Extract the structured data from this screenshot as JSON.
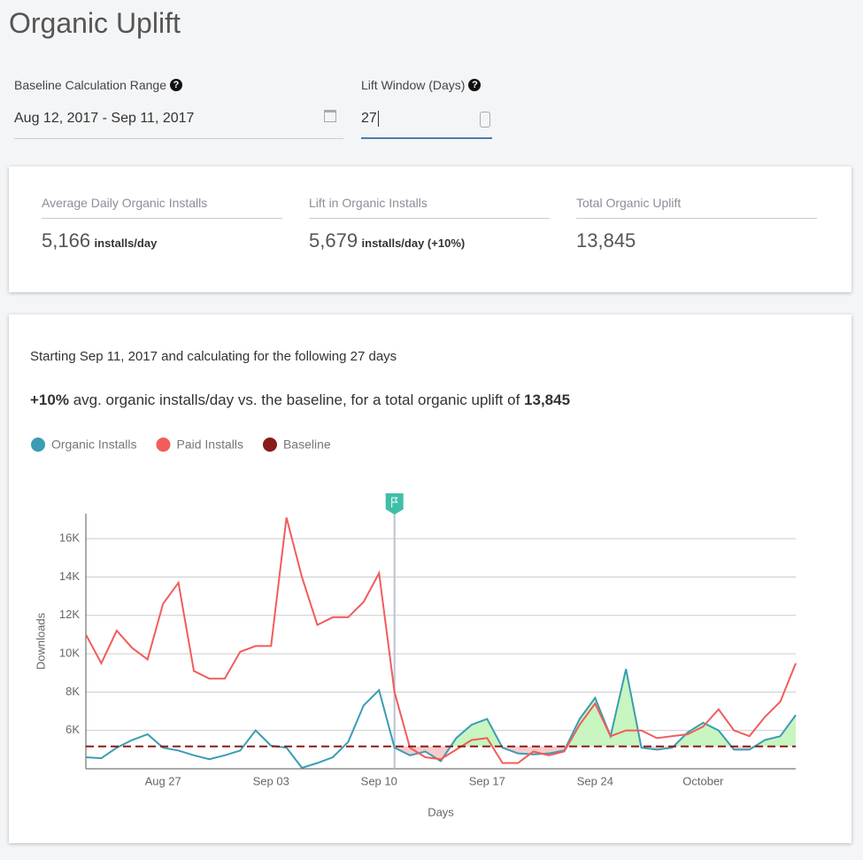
{
  "title": "Organic Uplift",
  "form": {
    "baseline_label": "Baseline Calculation Range",
    "baseline_value": "Aug 12, 2017 - Sep 11, 2017",
    "lift_label": "Lift Window (Days)",
    "lift_value": "27"
  },
  "stats": [
    {
      "label": "Average Daily Organic Installs",
      "value": "5,166",
      "unit": "installs/day"
    },
    {
      "label": "Lift in Organic Installs",
      "value": "5,679",
      "unit": "installs/day (+10%)"
    },
    {
      "label": "Total Organic Uplift",
      "value": "13,845"
    }
  ],
  "summary": {
    "line1": "Starting Sep 11, 2017 and calculating for the following 27 days",
    "lift": "+10%",
    "text": "avg. organic installs/day vs. the baseline, for a total organic uplift of",
    "total": "13,845"
  },
  "chart_data": {
    "type": "line",
    "xlabel": "Days",
    "ylabel": "Downloads",
    "categories": [
      null,
      null,
      null,
      null,
      null,
      "Aug 27",
      null,
      null,
      null,
      null,
      null,
      null,
      "Sep 03",
      null,
      null,
      null,
      null,
      null,
      null,
      "Sep 10",
      null,
      null,
      null,
      null,
      null,
      null,
      "Sep 17",
      null,
      null,
      null,
      null,
      null,
      null,
      "Sep 24",
      null,
      null,
      null,
      null,
      null,
      null,
      "October",
      null,
      null,
      null,
      null,
      null,
      null
    ],
    "series": [
      {
        "name": "Organic Installs",
        "color": "#3a9db3",
        "values": [
          4600,
          4550,
          5100,
          5500,
          5800,
          5100,
          4950,
          4700,
          4500,
          4700,
          4950,
          6000,
          5200,
          5100,
          4050,
          4300,
          4600,
          5400,
          7300,
          8100,
          5100,
          4700,
          4900,
          4400,
          5600,
          6300,
          6600,
          5100,
          4800,
          4750,
          4800,
          4950,
          6600,
          7700,
          5700,
          9200,
          5100,
          5000,
          5100,
          5900,
          6400,
          6000,
          5000,
          5000,
          5500,
          5700,
          6800
        ]
      },
      {
        "name": "Paid Installs",
        "color": "#f25c5c",
        "values": [
          11000,
          9500,
          11200,
          10300,
          9700,
          12600,
          13700,
          9100,
          8700,
          8700,
          10100,
          10400,
          10400,
          17100,
          14000,
          11500,
          11900,
          11900,
          12700,
          14200,
          8000,
          5100,
          4600,
          4500,
          5000,
          5500,
          5600,
          4300,
          4300,
          4900,
          4700,
          4900,
          6300,
          7400,
          5700,
          6000,
          6000,
          5600,
          5700,
          5800,
          6200,
          7100,
          6000,
          5700,
          6700,
          7500,
          9500
        ]
      }
    ],
    "baseline": {
      "name": "Baseline",
      "color": "#8b1a1a",
      "value": 5166
    },
    "flag_index": 20,
    "ylim": [
      4000,
      17300
    ],
    "yticks": [
      {
        "value": 6000,
        "label": "6K"
      },
      {
        "value": 8000,
        "label": "8K"
      },
      {
        "value": 10000,
        "label": "10K"
      },
      {
        "value": 12000,
        "label": "12K"
      },
      {
        "value": 14000,
        "label": "14K"
      },
      {
        "value": 16000,
        "label": "16K"
      }
    ],
    "grid": true
  }
}
